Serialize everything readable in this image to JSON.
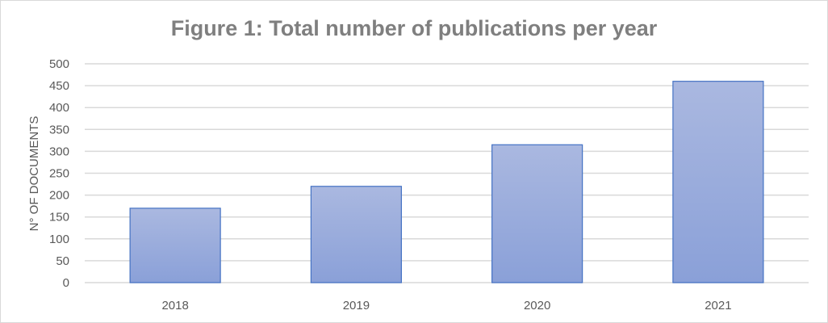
{
  "chart_data": {
    "type": "bar",
    "title": "Figure 1: Total number of publications per year",
    "xlabel": "",
    "ylabel": "N° OF DOCUMENTS",
    "categories": [
      "2018",
      "2019",
      "2020",
      "2021"
    ],
    "values": [
      170,
      220,
      315,
      460
    ],
    "ylim": [
      0,
      500
    ],
    "yticks": [
      0,
      50,
      100,
      150,
      200,
      250,
      300,
      350,
      400,
      450,
      500
    ],
    "grid": true,
    "legend": "none",
    "colors": {
      "bar_top": "#aab8e0",
      "bar_bottom": "#8aa0d8",
      "bar_border": "#4472c4",
      "grid": "#d9d9d9",
      "text": "#595959",
      "title": "#7f7f7f"
    }
  }
}
